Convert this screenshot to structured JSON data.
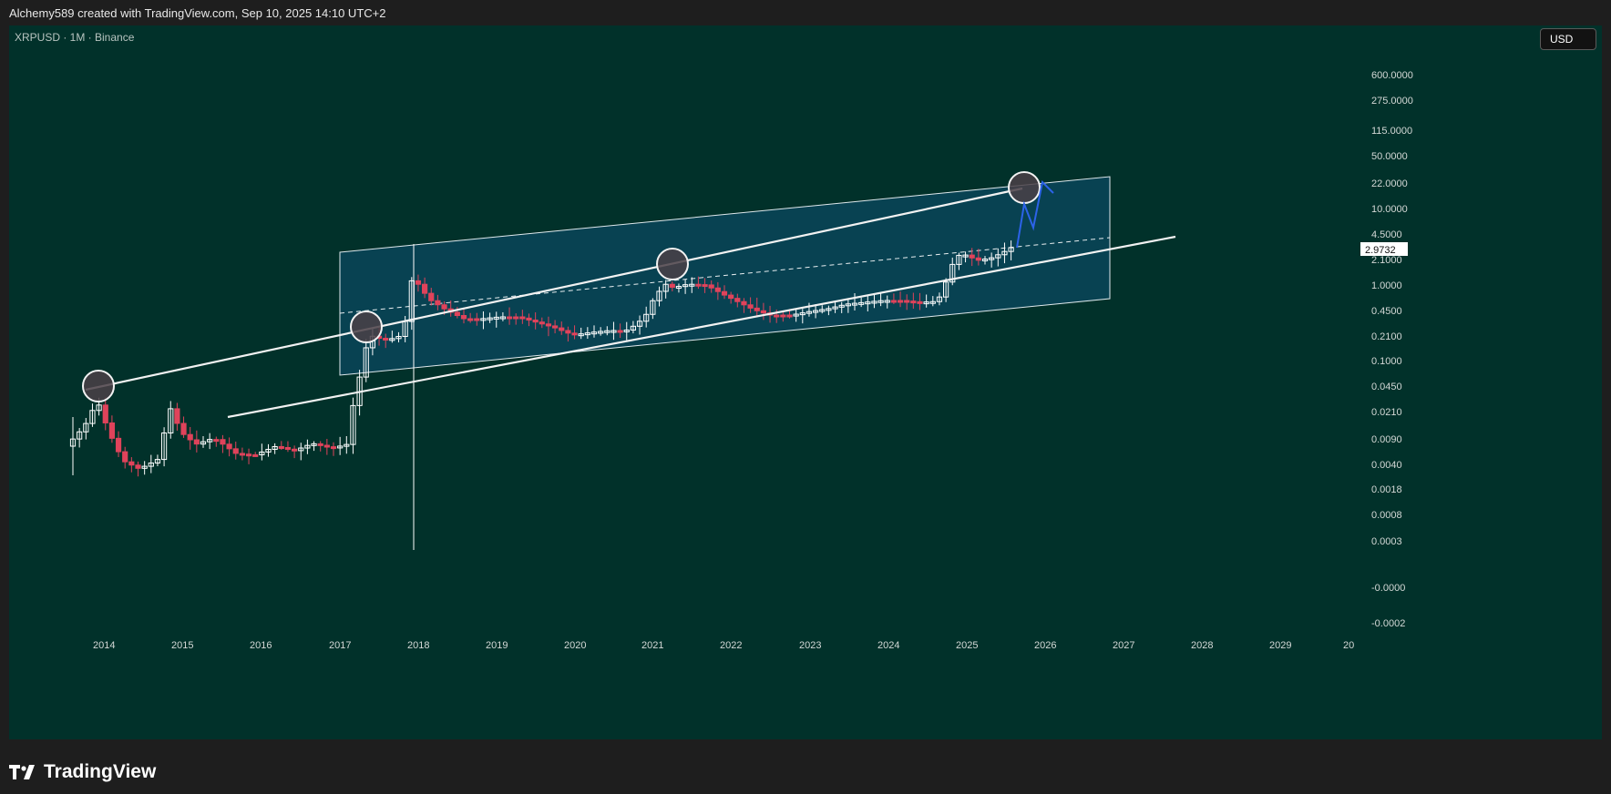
{
  "header": {
    "attribution": "Alchemy589 created with TradingView.com, Sep 10, 2025 14:10 UTC+2"
  },
  "chart": {
    "symbol_line": "XRPUSD · 1M · Binance",
    "currency": "USD",
    "last_price": "2.9732",
    "colors": {
      "background": "#01312a",
      "up": "#ffffff",
      "down": "#e0435b",
      "channel_fill": "#0b4a62",
      "projection": "#2c63e8",
      "text": "#c8d0cc"
    }
  },
  "chart_data": {
    "type": "candlestick",
    "y_scale": "log",
    "y_tick_labels": [
      "600.0000",
      "275.0000",
      "115.0000",
      "50.0000",
      "22.0000",
      "10.0000",
      "4.5000",
      "2.1000",
      "1.0000",
      "0.4500",
      "0.2100",
      "0.1000",
      "0.0450",
      "0.0210",
      "0.0090",
      "0.0040",
      "0.0018",
      "0.0008",
      "0.0003",
      "-0.0000",
      "-0.0002"
    ],
    "x_tick_labels": [
      "2014",
      "2015",
      "2016",
      "2017",
      "2018",
      "2019",
      "2020",
      "2021",
      "2022",
      "2023",
      "2024",
      "2025",
      "2026",
      "2027",
      "2028",
      "2029",
      "20"
    ],
    "last_price": 2.9732
  },
  "footer": {
    "brand": "TradingView",
    "brand_icon": "tradingview-logo-icon"
  }
}
